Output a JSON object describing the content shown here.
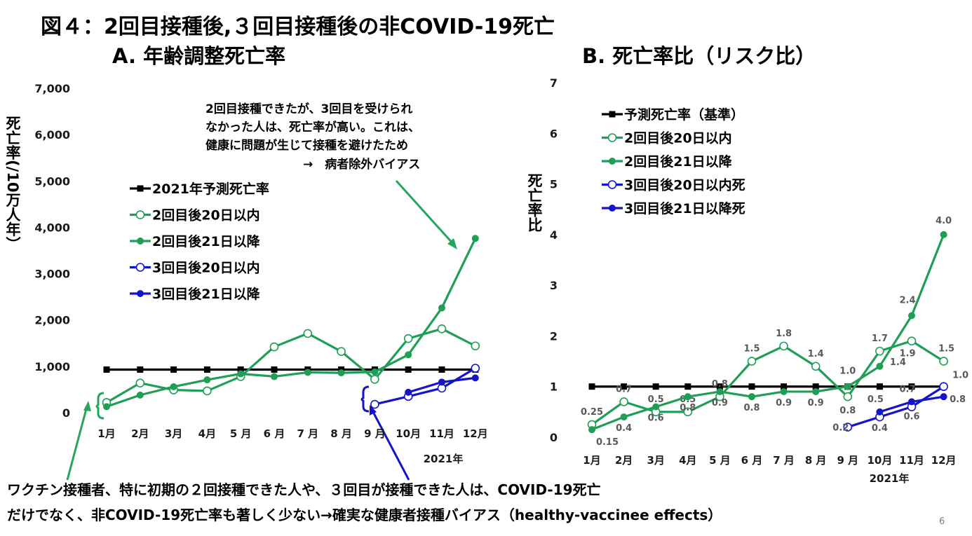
{
  "title": "図４：2回目接種後,３回目接種後の非COVID-19死亡",
  "page_number": "6",
  "footer": {
    "line1": "ワクチン接種者、特に初期の２回接種できた人や、３回目が接種できた人は、COVID-19死亡",
    "line2": "だけでなく、非COVID-19死亡率も著しく少ない→確実な健康者接種バイアス（healthy-vaccinee effects）"
  },
  "colors": {
    "black": "#000000",
    "green": "#1f9e55",
    "blue": "#1414c8",
    "arrow_green": "#26a65b",
    "arrow_blue": "#1414c8"
  },
  "chart_data": [
    {
      "type": "line",
      "title": "A. 年齢調整死亡率",
      "ylabel": "死亡率(/10万人年）",
      "year_label": "2021年",
      "ylim": [
        0,
        7000
      ],
      "yticks": [
        "0",
        "1,000",
        "2,000",
        "3,000",
        "4,000",
        "5,000",
        "6,000",
        "7,000"
      ],
      "categories": [
        "1月",
        "2月",
        "3月",
        "4月",
        "5 月",
        "6 月",
        "7 月",
        "8 月",
        "9 月",
        "10月",
        "11月",
        "12月"
      ],
      "annotation": {
        "line1": "2回目接種できたが、3回目を受けられ",
        "line2": "なかった人は、死亡率が高い。これは、",
        "line3": "健康に問題が生じて接種を避けたため",
        "line4": "→　病者除外バイアス"
      },
      "series": [
        {
          "name": "2021年予測死亡率",
          "color": "#000000",
          "marker": "square",
          "values": [
            930,
            930,
            930,
            930,
            930,
            930,
            930,
            930,
            930,
            930,
            930,
            930
          ]
        },
        {
          "name": "2回目後20日以内",
          "color": "#1f9e55",
          "marker": "open",
          "values": [
            220,
            640,
            490,
            470,
            780,
            1420,
            1710,
            1320,
            720,
            1600,
            1810,
            1440
          ]
        },
        {
          "name": "2回目後21日以降",
          "color": "#1f9e55",
          "marker": "filled",
          "values": [
            130,
            380,
            560,
            710,
            840,
            780,
            870,
            860,
            880,
            1250,
            2260,
            3760
          ]
        },
        {
          "name": "3回目後20日以内",
          "color": "#1414c8",
          "marker": "open",
          "values": [
            null,
            null,
            null,
            null,
            null,
            null,
            null,
            null,
            180,
            350,
            530,
            960
          ]
        },
        {
          "name": "3回目後21日以降",
          "color": "#1414c8",
          "marker": "filled",
          "values": [
            null,
            null,
            null,
            null,
            null,
            null,
            null,
            null,
            null,
            440,
            660,
            750
          ]
        }
      ]
    },
    {
      "type": "line",
      "title": "B. 死亡率比（リスク比）",
      "ylabel": "死亡率比",
      "year_label": "2021年",
      "ylim": [
        0,
        7
      ],
      "yticks": [
        "0",
        "1",
        "2",
        "3",
        "4",
        "5",
        "6",
        "7"
      ],
      "categories": [
        "1月",
        "2月",
        "3月",
        "4月",
        "5 月",
        "6 月",
        "7 月",
        "8 月",
        "9 月",
        "10月",
        "11月",
        "12月"
      ],
      "series": [
        {
          "name": "予測死亡率（基準）",
          "color": "#000000",
          "marker": "square",
          "values": [
            1,
            1,
            1,
            1,
            1,
            1,
            1,
            1,
            1,
            1,
            1,
            1
          ]
        },
        {
          "name": "2回目後20日以内",
          "color": "#1f9e55",
          "marker": "open",
          "values": [
            0.25,
            0.7,
            0.5,
            0.5,
            0.8,
            1.5,
            1.8,
            1.4,
            0.8,
            1.7,
            1.9,
            1.5
          ],
          "labels": [
            "0.25",
            "0.7",
            "0.5",
            "0.5",
            "0.8",
            "1.5",
            "1.8",
            "1.4",
            "0.8",
            "1.7",
            "1.9",
            "1.5"
          ]
        },
        {
          "name": "2回目後21日以降",
          "color": "#1f9e55",
          "marker": "filled",
          "values": [
            0.15,
            0.4,
            0.6,
            0.8,
            0.9,
            0.8,
            0.9,
            0.9,
            1.0,
            1.4,
            2.4,
            4.0
          ],
          "labels": [
            "0.15",
            "0.4",
            "0.6",
            "0.8",
            "0.9",
            "0.8",
            "0.9",
            "0.9",
            "1.0",
            "1.4",
            "2.4",
            "4.0"
          ]
        },
        {
          "name": "3回目後20日以内死",
          "color": "#1414c8",
          "marker": "open",
          "values": [
            null,
            null,
            null,
            null,
            null,
            null,
            null,
            null,
            0.2,
            0.4,
            0.6,
            1.0
          ],
          "labels": [
            "",
            "",
            "",
            "",
            "",
            "",
            "",
            "",
            "0.2",
            "0.4",
            "0.6",
            "1.0"
          ]
        },
        {
          "name": "3回目後21日以降死",
          "color": "#1414c8",
          "marker": "filled",
          "values": [
            null,
            null,
            null,
            null,
            null,
            null,
            null,
            null,
            null,
            0.5,
            0.7,
            0.8
          ],
          "labels": [
            "",
            "",
            "",
            "",
            "",
            "",
            "",
            "",
            "",
            "0.5",
            "0.7",
            "0.8"
          ]
        }
      ]
    }
  ]
}
